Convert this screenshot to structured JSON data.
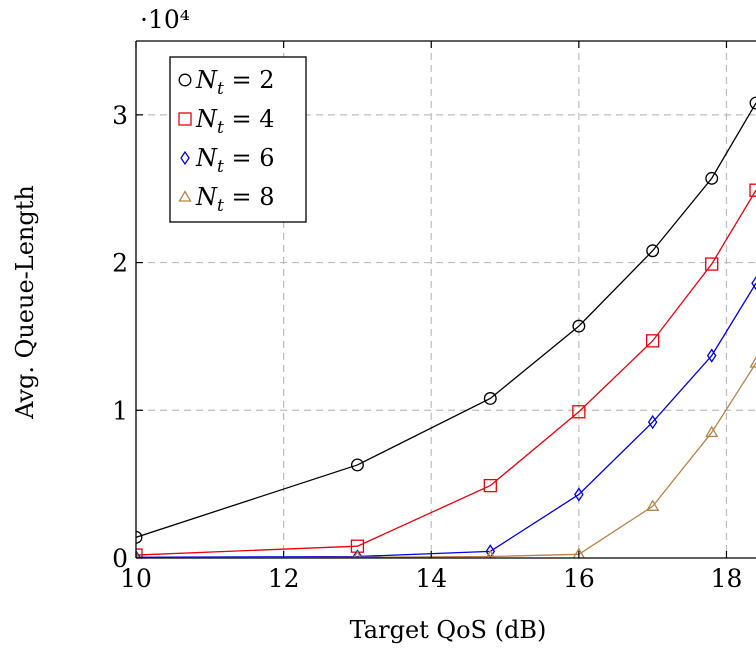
{
  "chart_data": {
    "type": "line",
    "title": "",
    "xlabel": "Target QoS (dB)",
    "ylabel": "Avg. Queue-Length",
    "y_scale_exponent": "·10⁴",
    "xlim": [
      10,
      18.4
    ],
    "ylim": [
      0,
      35000
    ],
    "x_ticks": [
      10,
      12,
      14,
      16,
      18
    ],
    "x_tick_labels": [
      "10",
      "12",
      "14",
      "16",
      "18"
    ],
    "y_ticks": [
      0,
      10000,
      20000,
      30000
    ],
    "y_tick_labels": [
      "0",
      "1",
      "2",
      "3"
    ],
    "grid": true,
    "legend_position": "top-left",
    "series": [
      {
        "name": "N_t = 2",
        "legend_label": "Nt = 2",
        "color": "#000000",
        "marker": "circle",
        "x": [
          10,
          13,
          14.8,
          16,
          17,
          17.8,
          18.4
        ],
        "y": [
          1400,
          6300,
          10800,
          15700,
          20800,
          25700,
          30800
        ]
      },
      {
        "name": "N_t = 4",
        "legend_label": "Nt = 4",
        "color": "#e8000b",
        "marker": "square",
        "x": [
          10,
          13,
          14.8,
          16,
          17,
          17.8,
          18.4
        ],
        "y": [
          200,
          800,
          4900,
          9900,
          14700,
          19900,
          24900
        ]
      },
      {
        "name": "N_t = 6",
        "legend_label": "Nt = 6",
        "color": "#0000e6",
        "marker": "diamond",
        "x": [
          10,
          13,
          14.8,
          16,
          17,
          17.8,
          18.4
        ],
        "y": [
          50,
          100,
          450,
          4300,
          9200,
          13700,
          18600
        ]
      },
      {
        "name": "N_t = 8",
        "legend_label": "Nt = 8",
        "color": "#b5844c",
        "marker": "triangle",
        "x": [
          10,
          13,
          14.8,
          16,
          17,
          17.8,
          18.4
        ],
        "y": [
          0,
          50,
          100,
          250,
          3500,
          8500,
          13200
        ]
      }
    ]
  }
}
